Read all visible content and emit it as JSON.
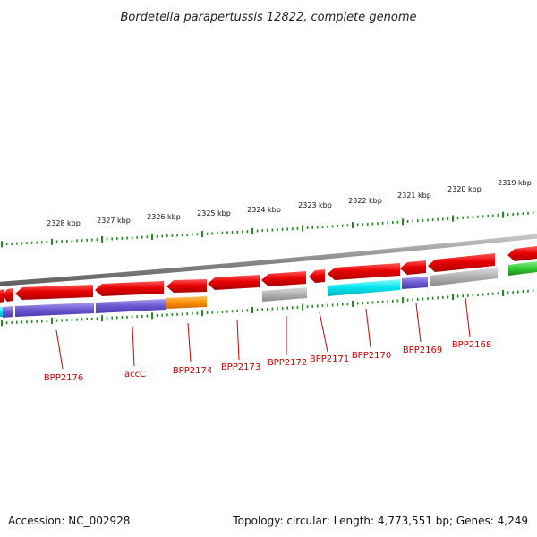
{
  "title": "Bordetella parapertussis 12822, complete genome",
  "footer": {
    "accession": "Accession: NC_002928",
    "summary": "Topology: circular; Length: 4,773,551 bp; Genes: 4,249"
  },
  "scale_labels": [
    "2328 kbp",
    "2327 kbp",
    "2326 kbp",
    "2325 kbp",
    "2324 kbp",
    "2323 kbp",
    "2322 kbp",
    "2321 kbp",
    "2320 kbp",
    "2319 kbp"
  ],
  "gene_labels": [
    "BPP2176",
    "accC",
    "BPP2174",
    "BPP2173",
    "BPP2172",
    "BPP2171",
    "BPP2170",
    "BPP2169",
    "BPP2168"
  ],
  "colors": {
    "backbone": "#8a8a8a",
    "cds": "#ee1111",
    "tick": "#228b22",
    "label": "#cc0000",
    "purple": "#7b68d8",
    "orange": "#ff9900",
    "gray": "#b0b0b0",
    "cyan": "#00e5ee",
    "green": "#33cc33"
  }
}
